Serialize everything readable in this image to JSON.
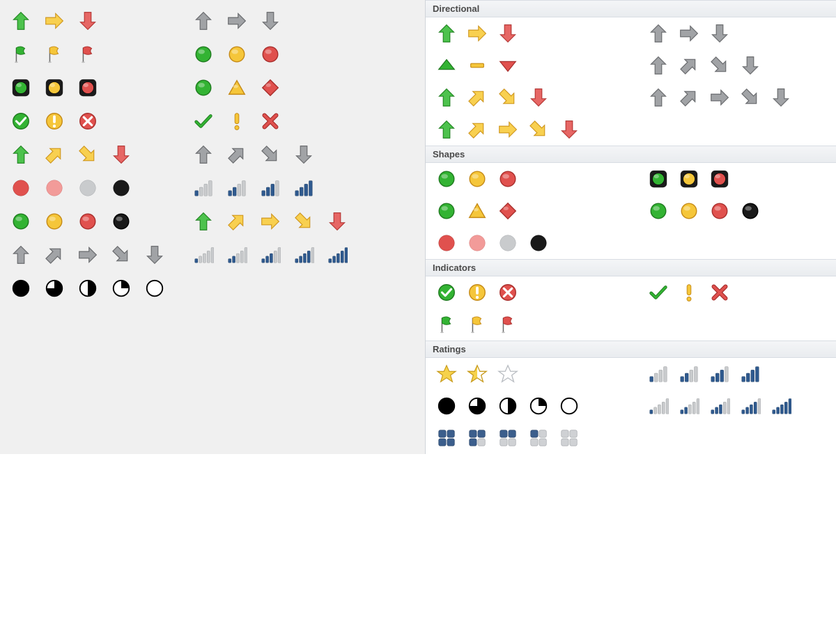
{
  "colors": {
    "green": {
      "fill": "#33b333",
      "stroke": "#1e7a1e",
      "light": "#7fdc7f"
    },
    "yellow": {
      "fill": "#f5c63a",
      "stroke": "#c58a16",
      "light": "#ffe17a"
    },
    "red": {
      "fill": "#e0514e",
      "stroke": "#a82e2c",
      "light": "#f0918f"
    },
    "gray": {
      "fill": "#8f9194",
      "stroke": "#5d5f62",
      "light": "#c3c5c8"
    },
    "black": {
      "fill": "#1a1a1a",
      "stroke": "#000000"
    },
    "blue": {
      "fill": "#2f5a8f",
      "stroke": "#22436a"
    },
    "silver": {
      "fill": "#c9cbcd",
      "stroke": "#9fa2a5"
    },
    "white": {
      "fill": "#ffffff",
      "stroke": "#3a3a3a"
    },
    "yellowStar": {
      "fill": "#f6d24b",
      "stroke": "#c79a1b"
    },
    "box": {
      "fill": "#3b5e8c",
      "stroke": "#2c476b"
    },
    "boxOff": {
      "fill": "#cfd1d4",
      "stroke": "#a9acb0"
    },
    "pink": {
      "fill": "#f29b99",
      "stroke": "#d16e6c"
    }
  },
  "leftGrid": {
    "rows": [
      {
        "left": [
          {
            "t": "arrow",
            "dir": "up",
            "c": "green"
          },
          {
            "t": "arrow",
            "dir": "right",
            "c": "yellow"
          },
          {
            "t": "arrow",
            "dir": "down",
            "c": "red"
          }
        ],
        "right": [
          {
            "t": "arrow",
            "dir": "up",
            "c": "gray"
          },
          {
            "t": "arrow",
            "dir": "right",
            "c": "gray"
          },
          {
            "t": "arrow",
            "dir": "down",
            "c": "gray"
          }
        ]
      },
      {
        "left": [
          {
            "t": "flag",
            "c": "green"
          },
          {
            "t": "flag",
            "c": "yellow"
          },
          {
            "t": "flag",
            "c": "red"
          }
        ],
        "right": [
          {
            "t": "circle",
            "c": "green"
          },
          {
            "t": "circle",
            "c": "yellow"
          },
          {
            "t": "circle",
            "c": "red"
          }
        ]
      },
      {
        "left": [
          {
            "t": "trafficlight",
            "c": "green"
          },
          {
            "t": "trafficlight",
            "c": "yellow"
          },
          {
            "t": "trafficlight",
            "c": "red"
          }
        ],
        "right": [
          {
            "t": "circle",
            "c": "green"
          },
          {
            "t": "triangle",
            "c": "yellow"
          },
          {
            "t": "diamond",
            "c": "red"
          }
        ]
      },
      {
        "left": [
          {
            "t": "sym-circle",
            "sym": "check",
            "c": "green"
          },
          {
            "t": "sym-circle",
            "sym": "excl",
            "c": "yellow"
          },
          {
            "t": "sym-circle",
            "sym": "cross",
            "c": "red"
          }
        ],
        "right": [
          {
            "t": "check",
            "c": "green"
          },
          {
            "t": "excl",
            "c": "yellow"
          },
          {
            "t": "cross",
            "c": "red"
          }
        ]
      },
      {
        "left": [
          {
            "t": "arrow",
            "dir": "up",
            "c": "green"
          },
          {
            "t": "arrow",
            "dir": "ne",
            "c": "yellow"
          },
          {
            "t": "arrow",
            "dir": "se",
            "c": "yellow"
          },
          {
            "t": "arrow",
            "dir": "down",
            "c": "red"
          }
        ],
        "right": [
          {
            "t": "arrow",
            "dir": "up",
            "c": "gray"
          },
          {
            "t": "arrow",
            "dir": "ne",
            "c": "gray"
          },
          {
            "t": "arrow",
            "dir": "se",
            "c": "gray"
          },
          {
            "t": "arrow",
            "dir": "down",
            "c": "gray"
          }
        ]
      },
      {
        "left": [
          {
            "t": "solidcircle",
            "c": "red"
          },
          {
            "t": "solidcircle",
            "c": "pink"
          },
          {
            "t": "solidcircle",
            "c": "silver"
          },
          {
            "t": "solidcircle",
            "c": "black"
          }
        ],
        "right": [
          {
            "t": "signal4",
            "lit": 1
          },
          {
            "t": "signal4",
            "lit": 2
          },
          {
            "t": "signal4",
            "lit": 3
          },
          {
            "t": "signal4",
            "lit": 4
          }
        ]
      },
      {
        "left": [
          {
            "t": "circle",
            "c": "green"
          },
          {
            "t": "circle",
            "c": "yellow"
          },
          {
            "t": "circle",
            "c": "red"
          },
          {
            "t": "circle",
            "c": "black"
          }
        ],
        "right": [
          {
            "t": "arrow",
            "dir": "up",
            "c": "green"
          },
          {
            "t": "arrow",
            "dir": "ne",
            "c": "yellow"
          },
          {
            "t": "arrow",
            "dir": "right",
            "c": "yellow"
          },
          {
            "t": "arrow",
            "dir": "se",
            "c": "yellow"
          },
          {
            "t": "arrow",
            "dir": "down",
            "c": "red"
          }
        ]
      },
      {
        "left": [
          {
            "t": "arrow",
            "dir": "up",
            "c": "gray"
          },
          {
            "t": "arrow",
            "dir": "ne",
            "c": "gray"
          },
          {
            "t": "arrow",
            "dir": "right",
            "c": "gray"
          },
          {
            "t": "arrow",
            "dir": "se",
            "c": "gray"
          },
          {
            "t": "arrow",
            "dir": "down",
            "c": "gray"
          }
        ],
        "right": [
          {
            "t": "signal5",
            "lit": 1
          },
          {
            "t": "signal5",
            "lit": 2
          },
          {
            "t": "signal5",
            "lit": 3
          },
          {
            "t": "signal5",
            "lit": 4
          },
          {
            "t": "signal5",
            "lit": 5
          }
        ]
      },
      {
        "left": [
          {
            "t": "pie",
            "q": 4
          },
          {
            "t": "pie",
            "q": 3
          },
          {
            "t": "pie",
            "q": 2
          },
          {
            "t": "pie",
            "q": 1
          },
          {
            "t": "pie",
            "q": 0
          }
        ],
        "right": []
      }
    ]
  },
  "rightPanel": {
    "sections": [
      {
        "title": "Directional",
        "rows": [
          {
            "left": [
              {
                "t": "arrow",
                "dir": "up",
                "c": "green"
              },
              {
                "t": "arrow",
                "dir": "right",
                "c": "yellow"
              },
              {
                "t": "arrow",
                "dir": "down",
                "c": "red"
              }
            ],
            "right": [
              {
                "t": "arrow",
                "dir": "up",
                "c": "gray"
              },
              {
                "t": "arrow",
                "dir": "right",
                "c": "gray"
              },
              {
                "t": "arrow",
                "dir": "down",
                "c": "gray"
              }
            ]
          },
          {
            "left": [
              {
                "t": "tri",
                "dir": "up",
                "c": "green"
              },
              {
                "t": "dash",
                "c": "yellow"
              },
              {
                "t": "tri",
                "dir": "down",
                "c": "red"
              }
            ],
            "right": [
              {
                "t": "arrow",
                "dir": "up",
                "c": "gray"
              },
              {
                "t": "arrow",
                "dir": "ne",
                "c": "gray"
              },
              {
                "t": "arrow",
                "dir": "se",
                "c": "gray"
              },
              {
                "t": "arrow",
                "dir": "down",
                "c": "gray"
              }
            ]
          },
          {
            "left": [
              {
                "t": "arrow",
                "dir": "up",
                "c": "green"
              },
              {
                "t": "arrow",
                "dir": "ne",
                "c": "yellow"
              },
              {
                "t": "arrow",
                "dir": "se",
                "c": "yellow"
              },
              {
                "t": "arrow",
                "dir": "down",
                "c": "red"
              }
            ],
            "right": [
              {
                "t": "arrow",
                "dir": "up",
                "c": "gray"
              },
              {
                "t": "arrow",
                "dir": "ne",
                "c": "gray"
              },
              {
                "t": "arrow",
                "dir": "right",
                "c": "gray"
              },
              {
                "t": "arrow",
                "dir": "se",
                "c": "gray"
              },
              {
                "t": "arrow",
                "dir": "down",
                "c": "gray"
              }
            ]
          },
          {
            "left": [
              {
                "t": "arrow",
                "dir": "up",
                "c": "green"
              },
              {
                "t": "arrow",
                "dir": "ne",
                "c": "yellow"
              },
              {
                "t": "arrow",
                "dir": "right",
                "c": "yellow"
              },
              {
                "t": "arrow",
                "dir": "se",
                "c": "yellow"
              },
              {
                "t": "arrow",
                "dir": "down",
                "c": "red"
              }
            ],
            "right": []
          }
        ]
      },
      {
        "title": "Shapes",
        "rows": [
          {
            "left": [
              {
                "t": "circle",
                "c": "green"
              },
              {
                "t": "circle",
                "c": "yellow"
              },
              {
                "t": "circle",
                "c": "red"
              }
            ],
            "right": [
              {
                "t": "trafficlight",
                "c": "green"
              },
              {
                "t": "trafficlight",
                "c": "yellow"
              },
              {
                "t": "trafficlight",
                "c": "red"
              }
            ]
          },
          {
            "left": [
              {
                "t": "circle",
                "c": "green"
              },
              {
                "t": "triangle",
                "c": "yellow"
              },
              {
                "t": "diamond",
                "c": "red"
              }
            ],
            "right": [
              {
                "t": "circle",
                "c": "green"
              },
              {
                "t": "circle",
                "c": "yellow"
              },
              {
                "t": "circle",
                "c": "red"
              },
              {
                "t": "circle",
                "c": "black"
              }
            ]
          },
          {
            "left": [
              {
                "t": "solidcircle",
                "c": "red"
              },
              {
                "t": "solidcircle",
                "c": "pink"
              },
              {
                "t": "solidcircle",
                "c": "silver"
              },
              {
                "t": "solidcircle",
                "c": "black"
              }
            ],
            "right": []
          }
        ]
      },
      {
        "title": "Indicators",
        "rows": [
          {
            "left": [
              {
                "t": "sym-circle",
                "sym": "check",
                "c": "green"
              },
              {
                "t": "sym-circle",
                "sym": "excl",
                "c": "yellow"
              },
              {
                "t": "sym-circle",
                "sym": "cross",
                "c": "red"
              }
            ],
            "right": [
              {
                "t": "check",
                "c": "green"
              },
              {
                "t": "excl",
                "c": "yellow"
              },
              {
                "t": "cross",
                "c": "red"
              }
            ]
          },
          {
            "left": [
              {
                "t": "flag",
                "c": "green"
              },
              {
                "t": "flag",
                "c": "yellow"
              },
              {
                "t": "flag",
                "c": "red"
              }
            ],
            "right": []
          }
        ]
      },
      {
        "title": "Ratings",
        "rows": [
          {
            "left": [
              {
                "t": "star",
                "fill": "full"
              },
              {
                "t": "star",
                "fill": "half"
              },
              {
                "t": "star",
                "fill": "empty"
              }
            ],
            "right": [
              {
                "t": "signal4",
                "lit": 1
              },
              {
                "t": "signal4",
                "lit": 2
              },
              {
                "t": "signal4",
                "lit": 3
              },
              {
                "t": "signal4",
                "lit": 4
              }
            ]
          },
          {
            "left": [
              {
                "t": "pie",
                "q": 4
              },
              {
                "t": "pie",
                "q": 3
              },
              {
                "t": "pie",
                "q": 2
              },
              {
                "t": "pie",
                "q": 1
              },
              {
                "t": "pie",
                "q": 0
              }
            ],
            "right": [
              {
                "t": "signal5",
                "lit": 1
              },
              {
                "t": "signal5",
                "lit": 2
              },
              {
                "t": "signal5",
                "lit": 3
              },
              {
                "t": "signal5",
                "lit": 4
              },
              {
                "t": "signal5",
                "lit": 5
              }
            ]
          },
          {
            "left": [
              {
                "t": "boxes",
                "lit": 4
              },
              {
                "t": "boxes",
                "lit": 3
              },
              {
                "t": "boxes",
                "lit": 2
              },
              {
                "t": "boxes",
                "lit": 1
              },
              {
                "t": "boxes",
                "lit": 0
              }
            ],
            "right": []
          }
        ]
      }
    ]
  }
}
